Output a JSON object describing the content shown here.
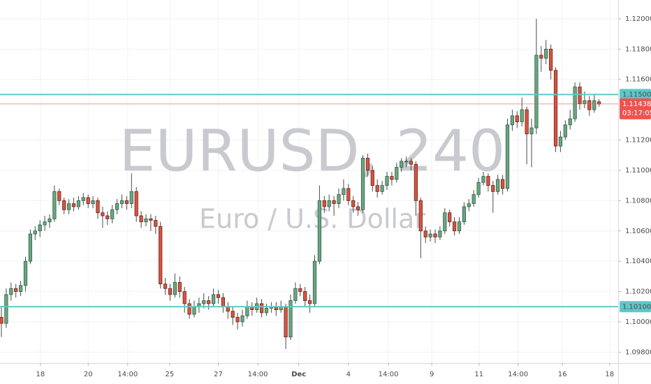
{
  "chart_data": {
    "type": "candlestick",
    "watermark": "EURUSD, 240",
    "watermark_subtitle": "Euro / U.S. Dollar",
    "up_color": "#6ba583",
    "down_color": "#d75442",
    "ylim": [
      1.09728,
      1.12124
    ],
    "xlim": [
      -0.29,
      127.97
    ],
    "grid": true,
    "yticks": [
      {
        "value": 1.12,
        "label": "1.12000"
      },
      {
        "value": 1.118,
        "label": "1.11800"
      },
      {
        "value": 1.116,
        "label": "1.11600"
      },
      {
        "value": 1.112,
        "label": "1.11200"
      },
      {
        "value": 1.11,
        "label": "1.11000"
      },
      {
        "value": 1.108,
        "label": "1.10800"
      },
      {
        "value": 1.106,
        "label": "1.10600"
      },
      {
        "value": 1.104,
        "label": "1.10400"
      },
      {
        "value": 1.102,
        "label": "1.10200"
      },
      {
        "value": 1.1,
        "label": "1.10000"
      },
      {
        "value": 1.098,
        "label": "1.09800"
      }
    ],
    "xticks": [
      {
        "value": 8.1,
        "label": "18"
      },
      {
        "value": 18,
        "label": "20"
      },
      {
        "value": 26.2,
        "label": "14:00"
      },
      {
        "value": 34.9,
        "label": "25"
      },
      {
        "value": 45,
        "label": "27"
      },
      {
        "value": 53.2,
        "label": "14:00"
      },
      {
        "value": 61.7,
        "label": "Dec"
      },
      {
        "value": 72,
        "label": "4"
      },
      {
        "value": 80.3,
        "label": "14:00"
      },
      {
        "value": 89.3,
        "label": "9"
      },
      {
        "value": 99.1,
        "label": "11"
      },
      {
        "value": 107.2,
        "label": "14:00"
      },
      {
        "value": 116.4,
        "label": "16"
      },
      {
        "value": 126.2,
        "label": "18"
      }
    ],
    "levels": [
      {
        "value": 1.115,
        "label": "1.11500",
        "color": "#5fc7c9"
      },
      {
        "value": 1.101,
        "label": "1.10100",
        "color": "#5fc7c9"
      }
    ],
    "price_line": {
      "value": 1.11438,
      "label": "1.11438",
      "countdown": "03:17:05",
      "color": "#ef5350"
    },
    "ohlc": [
      [
        1.1003,
        1.101,
        1.099,
        1.0999
      ],
      [
        1.0999,
        1.1022,
        1.0996,
        1.1018
      ],
      [
        1.1018,
        1.1026,
        1.1014,
        1.1022
      ],
      [
        1.1022,
        1.1025,
        1.1016,
        1.102
      ],
      [
        1.102,
        1.1027,
        1.1017,
        1.1024
      ],
      [
        1.1024,
        1.1043,
        1.102,
        1.104
      ],
      [
        1.104,
        1.1061,
        1.1038,
        1.1058
      ],
      [
        1.1058,
        1.1063,
        1.1054,
        1.106
      ],
      [
        1.106,
        1.1067,
        1.1056,
        1.1064
      ],
      [
        1.1064,
        1.107,
        1.106,
        1.1066
      ],
      [
        1.1066,
        1.1071,
        1.1062,
        1.1068
      ],
      [
        1.1068,
        1.109,
        1.1066,
        1.1086
      ],
      [
        1.1086,
        1.1088,
        1.1077,
        1.108
      ],
      [
        1.108,
        1.1082,
        1.1071,
        1.1074
      ],
      [
        1.1074,
        1.1081,
        1.1071,
        1.1078
      ],
      [
        1.1078,
        1.1082,
        1.1073,
        1.1076
      ],
      [
        1.1076,
        1.1083,
        1.1074,
        1.108
      ],
      [
        1.108,
        1.1085,
        1.1077,
        1.1082
      ],
      [
        1.1082,
        1.1084,
        1.1075,
        1.1078
      ],
      [
        1.1078,
        1.1083,
        1.1075,
        1.108
      ],
      [
        1.108,
        1.1082,
        1.1068,
        1.1072
      ],
      [
        1.1072,
        1.1076,
        1.1062,
        1.107
      ],
      [
        1.107,
        1.1073,
        1.1064,
        1.1068
      ],
      [
        1.1068,
        1.1077,
        1.1065,
        1.1074
      ],
      [
        1.1074,
        1.1081,
        1.1071,
        1.1078
      ],
      [
        1.1078,
        1.1084,
        1.1075,
        1.108
      ],
      [
        1.108,
        1.1083,
        1.1074,
        1.1078
      ],
      [
        1.1078,
        1.1098,
        1.1075,
        1.1086
      ],
      [
        1.1086,
        1.1089,
        1.1066,
        1.107
      ],
      [
        1.107,
        1.1073,
        1.1062,
        1.1066
      ],
      [
        1.1066,
        1.1071,
        1.1063,
        1.1068
      ],
      [
        1.1068,
        1.1071,
        1.106,
        1.1067
      ],
      [
        1.1067,
        1.107,
        1.1058,
        1.1063
      ],
      [
        1.1063,
        1.1066,
        1.1022,
        1.1025
      ],
      [
        1.1025,
        1.1029,
        1.1018,
        1.1022
      ],
      [
        1.1022,
        1.1025,
        1.1014,
        1.1018
      ],
      [
        1.1018,
        1.1032,
        1.1016,
        1.1026
      ],
      [
        1.1026,
        1.103,
        1.1016,
        1.102
      ],
      [
        1.102,
        1.1023,
        1.1006,
        1.1012
      ],
      [
        1.1012,
        1.1015,
        1.1002,
        1.1005
      ],
      [
        1.1005,
        1.1014,
        1.1003,
        1.101
      ],
      [
        1.101,
        1.1016,
        1.1006,
        1.1012
      ],
      [
        1.1012,
        1.1019,
        1.1009,
        1.1014
      ],
      [
        1.1014,
        1.1017,
        1.1008,
        1.1012
      ],
      [
        1.1012,
        1.1022,
        1.101,
        1.1018
      ],
      [
        1.1018,
        1.1021,
        1.1012,
        1.1016
      ],
      [
        1.1016,
        1.1019,
        1.1006,
        1.101
      ],
      [
        1.101,
        1.1013,
        1.1002,
        1.1007
      ],
      [
        1.1007,
        1.101,
        1.0998,
        1.1003
      ],
      [
        1.1003,
        1.1006,
        1.0995,
        1.1
      ],
      [
        1.1,
        1.1008,
        1.0997,
        1.1004
      ],
      [
        1.1004,
        1.1014,
        1.1002,
        1.101
      ],
      [
        1.101,
        1.1013,
        1.1004,
        1.1008
      ],
      [
        1.1008,
        1.1016,
        1.1006,
        1.1012
      ],
      [
        1.1012,
        1.1015,
        1.1003,
        1.1006
      ],
      [
        1.1006,
        1.1012,
        1.1004,
        1.1009
      ],
      [
        1.1009,
        1.1013,
        1.1006,
        1.101
      ],
      [
        1.101,
        1.1013,
        1.1004,
        1.1008
      ],
      [
        1.1008,
        1.1014,
        1.1006,
        1.101
      ],
      [
        1.101,
        1.1012,
        1.0982,
        1.099
      ],
      [
        1.099,
        1.1018,
        1.0988,
        1.1014
      ],
      [
        1.1014,
        1.1026,
        1.1012,
        1.1022
      ],
      [
        1.1022,
        1.1025,
        1.1017,
        1.102
      ],
      [
        1.102,
        1.1023,
        1.101,
        1.1014
      ],
      [
        1.1014,
        1.1018,
        1.1006,
        1.1012
      ],
      [
        1.1012,
        1.1044,
        1.101,
        1.104
      ],
      [
        1.104,
        1.109,
        1.1038,
        1.108
      ],
      [
        1.108,
        1.1083,
        1.1072,
        1.1076
      ],
      [
        1.1076,
        1.1084,
        1.1073,
        1.108
      ],
      [
        1.108,
        1.1083,
        1.107,
        1.1078
      ],
      [
        1.1078,
        1.1088,
        1.1075,
        1.1084
      ],
      [
        1.1084,
        1.1094,
        1.108,
        1.1088
      ],
      [
        1.1088,
        1.1091,
        1.1077,
        1.108
      ],
      [
        1.108,
        1.1083,
        1.1072,
        1.1076
      ],
      [
        1.1076,
        1.1079,
        1.107,
        1.1074
      ],
      [
        1.1074,
        1.111,
        1.1072,
        1.1108
      ],
      [
        1.1108,
        1.1111,
        1.1096,
        1.11
      ],
      [
        1.11,
        1.1103,
        1.1086,
        1.109
      ],
      [
        1.109,
        1.1094,
        1.1082,
        1.1086
      ],
      [
        1.1086,
        1.1093,
        1.1084,
        1.109
      ],
      [
        1.109,
        1.1099,
        1.1087,
        1.1096
      ],
      [
        1.1096,
        1.1099,
        1.109,
        1.1094
      ],
      [
        1.1094,
        1.1105,
        1.1092,
        1.1102
      ],
      [
        1.1102,
        1.1108,
        1.1099,
        1.1106
      ],
      [
        1.1106,
        1.1109,
        1.1102,
        1.1106
      ],
      [
        1.1106,
        1.1108,
        1.11,
        1.1104
      ],
      [
        1.1104,
        1.1106,
        1.107,
        1.108
      ],
      [
        1.108,
        1.1082,
        1.1042,
        1.106
      ],
      [
        1.106,
        1.1063,
        1.1052,
        1.1056
      ],
      [
        1.1056,
        1.1061,
        1.1053,
        1.1058
      ],
      [
        1.1058,
        1.1061,
        1.1052,
        1.1056
      ],
      [
        1.1056,
        1.1063,
        1.1054,
        1.106
      ],
      [
        1.106,
        1.1075,
        1.1058,
        1.1072
      ],
      [
        1.1072,
        1.1074,
        1.1063,
        1.1066
      ],
      [
        1.1066,
        1.1069,
        1.1057,
        1.106
      ],
      [
        1.106,
        1.1069,
        1.1058,
        1.1066
      ],
      [
        1.1066,
        1.1079,
        1.1064,
        1.1076
      ],
      [
        1.1076,
        1.1081,
        1.1073,
        1.1078
      ],
      [
        1.1078,
        1.1087,
        1.1076,
        1.1084
      ],
      [
        1.1084,
        1.1095,
        1.1082,
        1.1092
      ],
      [
        1.1092,
        1.1099,
        1.109,
        1.1096
      ],
      [
        1.1096,
        1.1098,
        1.1086,
        1.109
      ],
      [
        1.109,
        1.1093,
        1.1072,
        1.1086
      ],
      [
        1.1086,
        1.1097,
        1.1084,
        1.1094
      ],
      [
        1.1094,
        1.1097,
        1.1084,
        1.1088
      ],
      [
        1.1088,
        1.1134,
        1.1086,
        1.113
      ],
      [
        1.113,
        1.114,
        1.1126,
        1.1136
      ],
      [
        1.1136,
        1.1139,
        1.1128,
        1.1132
      ],
      [
        1.1132,
        1.1148,
        1.1129,
        1.114
      ],
      [
        1.114,
        1.1142,
        1.1104,
        1.1124
      ],
      [
        1.1124,
        1.1134,
        1.1102,
        1.1128
      ],
      [
        1.1128,
        1.12,
        1.1124,
        1.1176
      ],
      [
        1.1176,
        1.1182,
        1.1165,
        1.1174
      ],
      [
        1.1174,
        1.1186,
        1.117,
        1.118
      ],
      [
        1.118,
        1.1183,
        1.116,
        1.1166
      ],
      [
        1.1166,
        1.1168,
        1.1112,
        1.1116
      ],
      [
        1.1116,
        1.1126,
        1.1112,
        1.1122
      ],
      [
        1.1122,
        1.1133,
        1.112,
        1.113
      ],
      [
        1.113,
        1.114,
        1.1127,
        1.1134
      ],
      [
        1.1134,
        1.1158,
        1.1132,
        1.1155
      ],
      [
        1.1155,
        1.1158,
        1.114,
        1.1144
      ],
      [
        1.1144,
        1.1152,
        1.1141,
        1.1146
      ],
      [
        1.1146,
        1.1149,
        1.1136,
        1.114
      ],
      [
        1.114,
        1.115,
        1.1138,
        1.1146
      ],
      [
        1.11452,
        1.1147,
        1.1142,
        1.11438
      ]
    ]
  }
}
